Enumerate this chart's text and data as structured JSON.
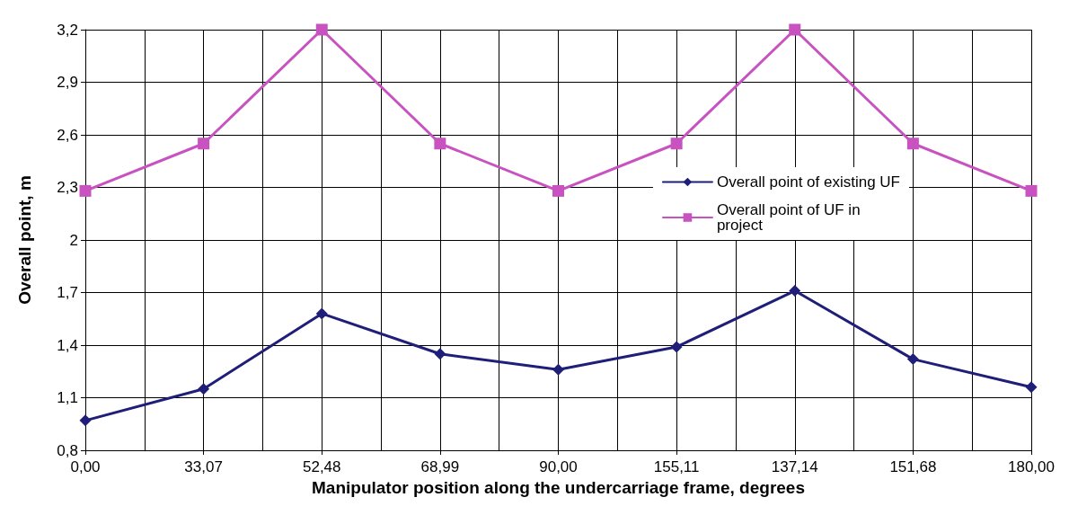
{
  "chart_data": {
    "type": "line",
    "xlabel": "Manipulator position along the undercarriage frame, degrees",
    "ylabel": "Overall point, m",
    "categories": [
      "0,00",
      "33,07",
      "52,48",
      "68,99",
      "90,00",
      "155,11",
      "137,14",
      "151,68",
      "180,00"
    ],
    "series": [
      {
        "name": "Overall point of existing UF",
        "color": "#1f1f7a",
        "marker": "diamond",
        "values": [
          0.97,
          1.15,
          1.58,
          1.35,
          1.26,
          1.39,
          1.71,
          1.32,
          1.16
        ]
      },
      {
        "name": "Overall point of UF in project",
        "color": "#c853c0",
        "marker": "square",
        "values": [
          2.28,
          2.55,
          3.2,
          2.55,
          2.28,
          2.55,
          3.2,
          2.55,
          2.28
        ]
      }
    ],
    "ylim": [
      0.8,
      3.2
    ],
    "yticks": [
      {
        "value": 0.8,
        "label": "0,8"
      },
      {
        "value": 1.1,
        "label": "1,1"
      },
      {
        "value": 1.4,
        "label": "1,4"
      },
      {
        "value": 1.7,
        "label": "1,7"
      },
      2,
      {
        "value": 2.3,
        "label": "2,3"
      },
      {
        "value": 2.6,
        "label": "2,6"
      },
      {
        "value": 2.9,
        "label": "2,9"
      },
      {
        "value": 3.2,
        "label": "3,2"
      }
    ],
    "grid": true,
    "legend": "right",
    "line_style": "solid"
  }
}
